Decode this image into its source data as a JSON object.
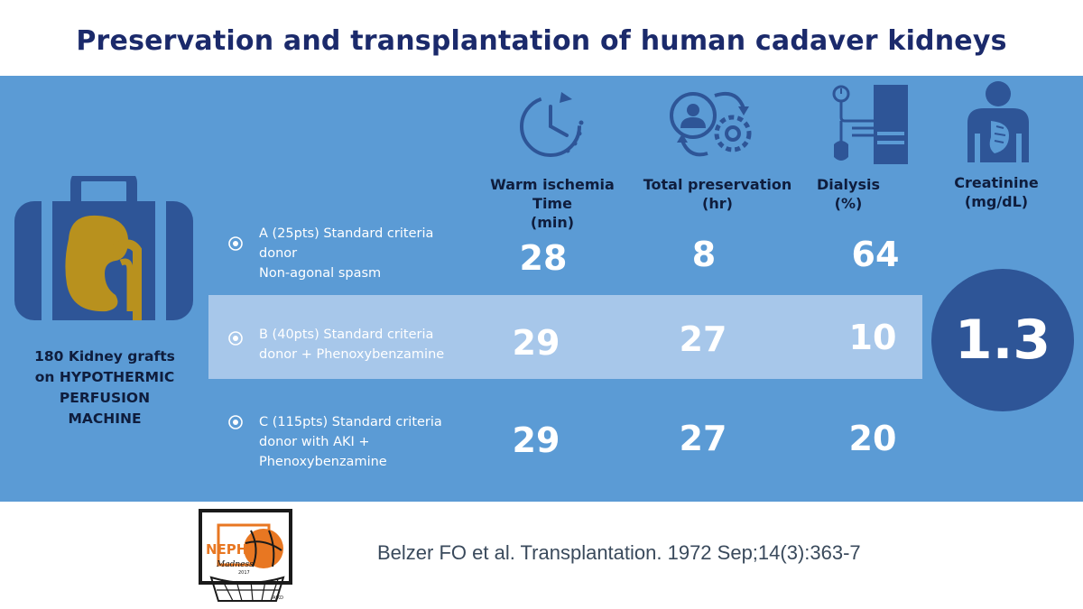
{
  "title": "Preservation and transplantation of human cadaver kidneys",
  "grafts_label": [
    "180 Kidney grafts",
    "on HYPOTHERMIC",
    "PERFUSION",
    "MACHINE"
  ],
  "columns": [
    {
      "id": "warm",
      "lines": [
        "Warm ischemia",
        "Time",
        "(min)"
      ],
      "icon": "clock-cycle-icon"
    },
    {
      "id": "total",
      "lines": [
        "Total preservation",
        "(hr)"
      ],
      "icon": "person-gear-cycle-icon"
    },
    {
      "id": "dialysis",
      "lines": [
        "Dialysis",
        "(%)"
      ],
      "icon": "dialysis-machine-icon"
    },
    {
      "id": "creat",
      "lines": [
        "Creatinine",
        "(mg/dL)"
      ],
      "icon": "person-kidney-icon"
    }
  ],
  "groups": [
    {
      "lines": [
        "A (25pts) Standard criteria",
        "donor",
        "Non-agonal spasm"
      ],
      "warm": "28",
      "total": "8",
      "dialysis": "64"
    },
    {
      "lines": [
        "B (40pts) Standard criteria",
        "donor + Phenoxybenzamine"
      ],
      "warm": "29",
      "total": "27",
      "dialysis": "10"
    },
    {
      "lines": [
        "C (115pts) Standard criteria",
        "donor with AKI +",
        "Phenoxybenzamine"
      ],
      "warm": "29",
      "total": "27",
      "dialysis": "20"
    }
  ],
  "creatinine_value": "1.3",
  "logo": {
    "text": "NEPH",
    "subtext": "Madness",
    "year": "2017",
    "footer": "AJKD"
  },
  "citation": "Belzer FO et al. Transplantation. 1972 Sep;14(3):363-7",
  "colors": {
    "title": "#1b2a6b",
    "panel": "#5b9bd5",
    "highlight_band": "#a7c7ea",
    "dark_blue": "#2e5597",
    "kidney": "#b8911e",
    "dark_text": "#0f1d3d"
  }
}
